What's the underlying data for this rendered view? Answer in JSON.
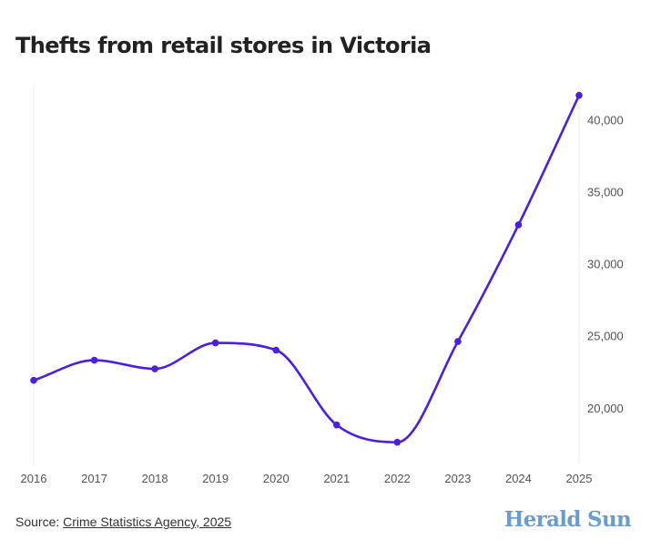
{
  "title": "Thefts from retail stores in Victoria",
  "source": {
    "prefix": "Source: ",
    "link_text": "Crime Statistics Agency, 2025"
  },
  "logo": {
    "text": "Herald Sun",
    "color": "#6a9bd1"
  },
  "colors": {
    "line": "#4a1fe0",
    "grid": "#eeeeee",
    "axis_text": "#555555",
    "title": "#222222"
  },
  "chart_data": {
    "type": "line",
    "title": "Thefts from retail stores in Victoria",
    "xlabel": "",
    "ylabel": "",
    "x": [
      2016,
      2017,
      2018,
      2019,
      2020,
      2021,
      2022,
      2023,
      2024,
      2025
    ],
    "series": [
      {
        "values": [
          21900,
          23300,
          22700,
          24500,
          24000,
          18800,
          17600,
          24600,
          32700,
          41700
        ]
      }
    ],
    "xticks": [
      "2016",
      "2017",
      "2018",
      "2019",
      "2020",
      "2021",
      "2022",
      "2023",
      "2024",
      "2025"
    ],
    "yticks": [
      20000,
      25000,
      30000,
      35000,
      40000
    ],
    "ytick_labels": [
      "20,000",
      "25,000",
      "30,000",
      "35,000",
      "40,000"
    ],
    "ylim": [
      16000,
      42500
    ],
    "y_axis_position": "right",
    "grid": false,
    "legend": "none",
    "curve": "smooth"
  }
}
